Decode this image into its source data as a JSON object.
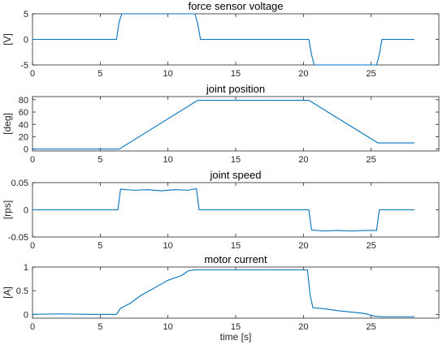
{
  "chart_data": [
    {
      "type": "line",
      "title": "force sensor voltage",
      "ylabel": "[V]",
      "xlabel": "",
      "xlim": [
        0,
        30
      ],
      "ylim": [
        -5,
        5
      ],
      "xticks": [
        0,
        5,
        10,
        15,
        20,
        25
      ],
      "yticks": [
        -5,
        0,
        5
      ],
      "grid": false,
      "color": "#0072bd",
      "series": [
        {
          "x": [
            0,
            6.2,
            6.4,
            6.6,
            12.0,
            12.2,
            12.4,
            20.4,
            20.6,
            20.8,
            25.4,
            25.6,
            25.8,
            28.2
          ],
          "y": [
            0,
            0,
            3.5,
            5,
            5,
            3,
            0,
            0,
            -3,
            -5,
            -5,
            -3,
            0,
            0
          ]
        }
      ]
    },
    {
      "type": "line",
      "title": "joint position",
      "ylabel": "[deg]",
      "xlabel": "",
      "xlim": [
        0,
        30
      ],
      "ylim": [
        -3,
        85
      ],
      "xticks": [
        0,
        5,
        10,
        15,
        20,
        25
      ],
      "yticks": [
        0,
        20,
        40,
        60,
        80
      ],
      "grid": false,
      "color": "#0072bd",
      "series": [
        {
          "x": [
            0,
            6.4,
            12.2,
            20.4,
            25.5,
            28.2
          ],
          "y": [
            0,
            0,
            79,
            79,
            10,
            10
          ]
        }
      ]
    },
    {
      "type": "line",
      "title": "joint speed",
      "ylabel": "[rps]",
      "xlabel": "",
      "xlim": [
        0,
        30
      ],
      "ylim": [
        -0.05,
        0.05
      ],
      "xticks": [
        0,
        5,
        10,
        15,
        20,
        25
      ],
      "yticks": [
        -0.05,
        0,
        0.05
      ],
      "grid": false,
      "color": "#0072bd",
      "series": [
        {
          "x": [
            0,
            6.3,
            6.5,
            7.5,
            8.5,
            9.5,
            10.5,
            11.5,
            12.1,
            12.3,
            20.4,
            20.6,
            21.5,
            22.5,
            23.5,
            24.5,
            25.4,
            25.6,
            28.2
          ],
          "y": [
            0,
            0,
            0.038,
            0.036,
            0.037,
            0.035,
            0.037,
            0.036,
            0.039,
            0,
            0,
            -0.037,
            -0.039,
            -0.038,
            -0.039,
            -0.038,
            -0.038,
            0,
            0
          ]
        }
      ]
    },
    {
      "type": "line",
      "title": "motor current",
      "ylabel": "[A]",
      "xlabel": "time [s]",
      "xlim": [
        0,
        30
      ],
      "ylim": [
        -0.08,
        1.0
      ],
      "xticks": [
        0,
        5,
        10,
        15,
        20,
        25
      ],
      "yticks": [
        0,
        0.5,
        1
      ],
      "grid": false,
      "color": "#0072bd",
      "series": [
        {
          "x": [
            0,
            2,
            4,
            6.2,
            6.5,
            7.2,
            8,
            9,
            10,
            11,
            11.5,
            12,
            13,
            15,
            17,
            19,
            20.3,
            20.5,
            20.7,
            21.5,
            22.5,
            23.5,
            24.5,
            25.3,
            26,
            27,
            28.2
          ],
          "y": [
            0,
            0.01,
            0,
            0,
            0.13,
            0.23,
            0.4,
            0.56,
            0.72,
            0.82,
            0.92,
            0.94,
            0.94,
            0.94,
            0.94,
            0.94,
            0.94,
            0.4,
            0.14,
            0.12,
            0.08,
            0.05,
            0.02,
            -0.04,
            -0.05,
            -0.05,
            -0.05
          ]
        }
      ]
    }
  ]
}
